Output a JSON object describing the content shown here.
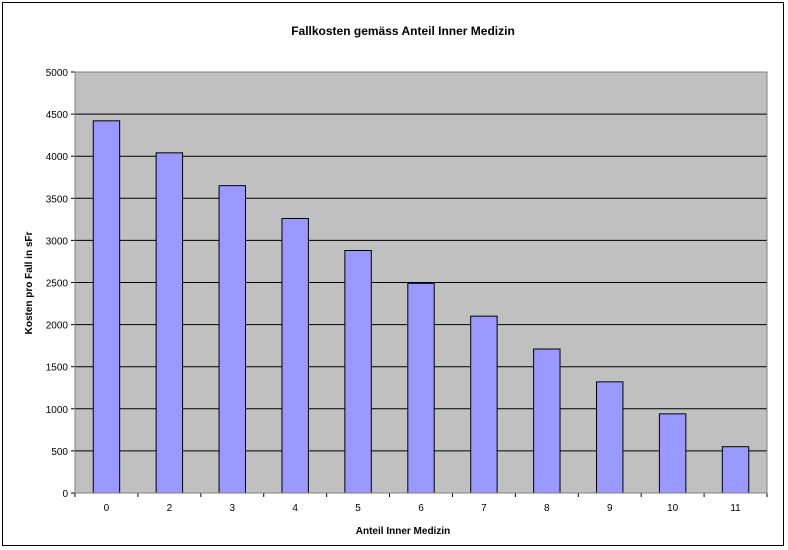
{
  "chart_data": {
    "type": "bar",
    "title": "Fallkosten gemäss Anteil Inner Medizin",
    "xlabel": "Anteil Inner Medizin",
    "ylabel": "Kosten pro Fall   in sFr",
    "categories": [
      "0",
      "2",
      "3",
      "4",
      "5",
      "6",
      "7",
      "8",
      "9",
      "10",
      "11"
    ],
    "values": [
      4420,
      4040,
      3650,
      3260,
      2880,
      2490,
      2100,
      1710,
      1320,
      940,
      550
    ],
    "ylim": [
      0,
      5000
    ],
    "yticks": [
      "0",
      "500",
      "1000",
      "1500",
      "2000",
      "2500",
      "3000",
      "3500",
      "4000",
      "4500",
      "5000"
    ],
    "grid": true,
    "legend": "none"
  },
  "colors": {
    "plot_background": "#c0c0c0",
    "bar_fill": "#9999ff",
    "bar_stroke": "#000000",
    "gridline": "#000000"
  }
}
